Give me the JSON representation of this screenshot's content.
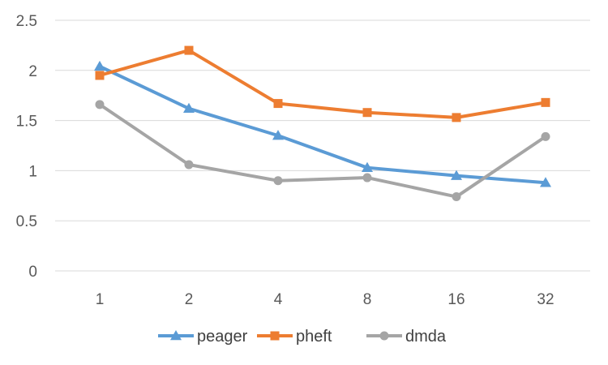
{
  "chart_data": {
    "type": "line",
    "categories": [
      "1",
      "2",
      "4",
      "8",
      "16",
      "32"
    ],
    "ylim": [
      0,
      2.5
    ],
    "yticks": [
      "0",
      "0.5",
      "1",
      "1.5",
      "2",
      "2.5"
    ],
    "grid": true,
    "legend_position": "bottom",
    "series": [
      {
        "name": "peager",
        "values": [
          2.04,
          1.62,
          1.35,
          1.03,
          0.95,
          0.88
        ],
        "color": "#5b9bd5",
        "marker": "triangle"
      },
      {
        "name": "pheft",
        "values": [
          1.95,
          2.2,
          1.67,
          1.58,
          1.53,
          1.68
        ],
        "color": "#ed7d31",
        "marker": "square"
      },
      {
        "name": "dmda",
        "values": [
          1.66,
          1.06,
          0.9,
          0.93,
          0.74,
          1.34
        ],
        "color": "#a5a5a5",
        "marker": "circle"
      }
    ]
  }
}
